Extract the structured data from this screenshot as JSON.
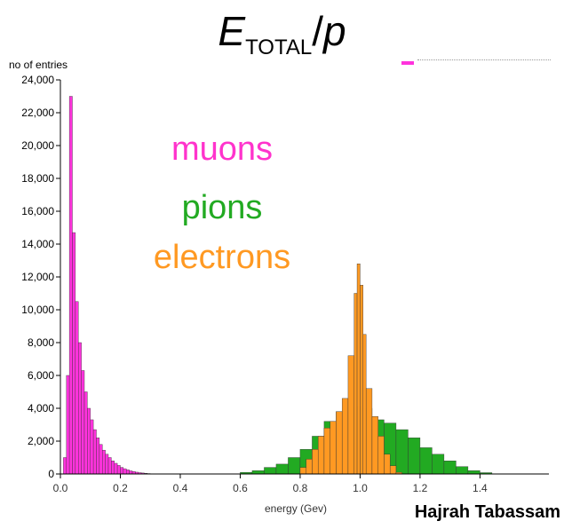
{
  "title": {
    "main": "E",
    "sub": "TOTAL",
    "slash": "/",
    "p": "p"
  },
  "author": "Hajrah Tabassam",
  "chart_data": {
    "type": "bar",
    "ylabel": "no of entries",
    "xlabel": "energy (Gev)",
    "xlim": [
      0.0,
      1.5
    ],
    "ylim": [
      0,
      24000
    ],
    "xticks": [
      "0.0",
      "0.2",
      "0.4",
      "0.6",
      "0.8",
      "1.0",
      "1.2",
      "1.4"
    ],
    "yticks": [
      "0",
      "2,000",
      "4,000",
      "6,000",
      "8,000",
      "10,000",
      "12,000",
      "14,000",
      "16,000",
      "18,000",
      "20,000",
      "22,000",
      "24,000"
    ],
    "annotations": [
      {
        "text": "muons",
        "color": "#ff33cc"
      },
      {
        "text": "pions",
        "color": "#22aa22"
      },
      {
        "text": "electrons",
        "color": "#ff9922"
      }
    ],
    "series": [
      {
        "name": "muons",
        "color": "#ff33dd",
        "x": [
          0.01,
          0.02,
          0.03,
          0.04,
          0.05,
          0.06,
          0.07,
          0.08,
          0.09,
          0.1,
          0.11,
          0.12,
          0.13,
          0.14,
          0.15,
          0.16,
          0.17,
          0.18,
          0.19,
          0.2,
          0.21,
          0.22,
          0.23,
          0.24,
          0.25,
          0.26,
          0.27,
          0.28,
          0.29,
          0.3
        ],
        "values": [
          1000,
          6000,
          23000,
          14700,
          10500,
          8000,
          6300,
          5000,
          4000,
          3300,
          2700,
          2200,
          1800,
          1450,
          1200,
          1000,
          800,
          650,
          520,
          400,
          320,
          250,
          190,
          150,
          110,
          80,
          60,
          40,
          25,
          15
        ]
      },
      {
        "name": "pions",
        "color": "#22aa22",
        "x": [
          0.0,
          0.6,
          0.64,
          0.68,
          0.72,
          0.76,
          0.8,
          0.84,
          0.88,
          0.92,
          0.96,
          1.0,
          1.04,
          1.08,
          1.12,
          1.16,
          1.2,
          1.24,
          1.28,
          1.32,
          1.36,
          1.4
        ],
        "values": [
          0,
          100,
          200,
          400,
          600,
          1000,
          1500,
          2300,
          3200,
          3800,
          4100,
          4000,
          3300,
          3100,
          2700,
          2200,
          1600,
          1200,
          800,
          450,
          200,
          80
        ]
      },
      {
        "name": "electrons",
        "color": "#ff9922",
        "x": [
          0.8,
          0.82,
          0.84,
          0.86,
          0.88,
          0.9,
          0.92,
          0.94,
          0.96,
          0.98,
          0.99,
          1.0,
          1.01,
          1.02,
          1.04,
          1.06,
          1.08,
          1.1,
          1.12
        ],
        "values": [
          400,
          900,
          1500,
          2300,
          2800,
          3200,
          3800,
          4600,
          7200,
          11000,
          12800,
          11500,
          8500,
          5200,
          3500,
          2300,
          1200,
          500,
          100
        ]
      }
    ]
  }
}
